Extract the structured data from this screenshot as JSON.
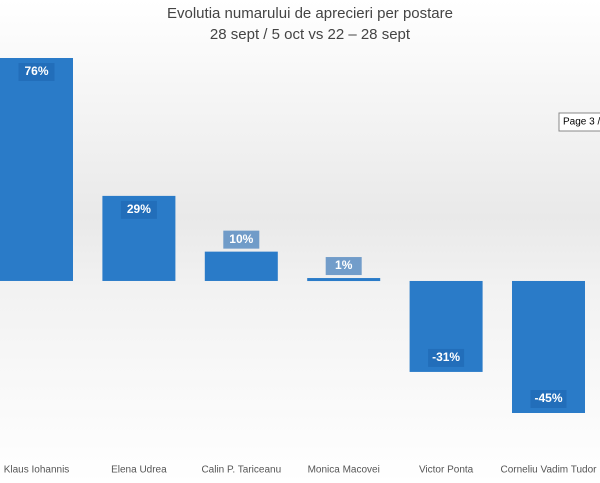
{
  "chart_data": {
    "type": "bar",
    "title": "Evolutia numarului de aprecieri per postare",
    "subtitle": "28 sept / 5 oct vs  22 – 28 sept",
    "categories": [
      "Klaus Iohannis",
      "Elena Udrea",
      "Calin P. Tariceanu",
      "Monica Macovei",
      "Victor Ponta",
      "Corneliu Vadim Tudor"
    ],
    "values": [
      76,
      29,
      10,
      1,
      -31,
      -45
    ],
    "value_labels": [
      "76%",
      "29%",
      "10%",
      "1%",
      "-31%",
      "-45%"
    ],
    "color": "#2a7bc8",
    "tooltip": "Page 3 /"
  }
}
